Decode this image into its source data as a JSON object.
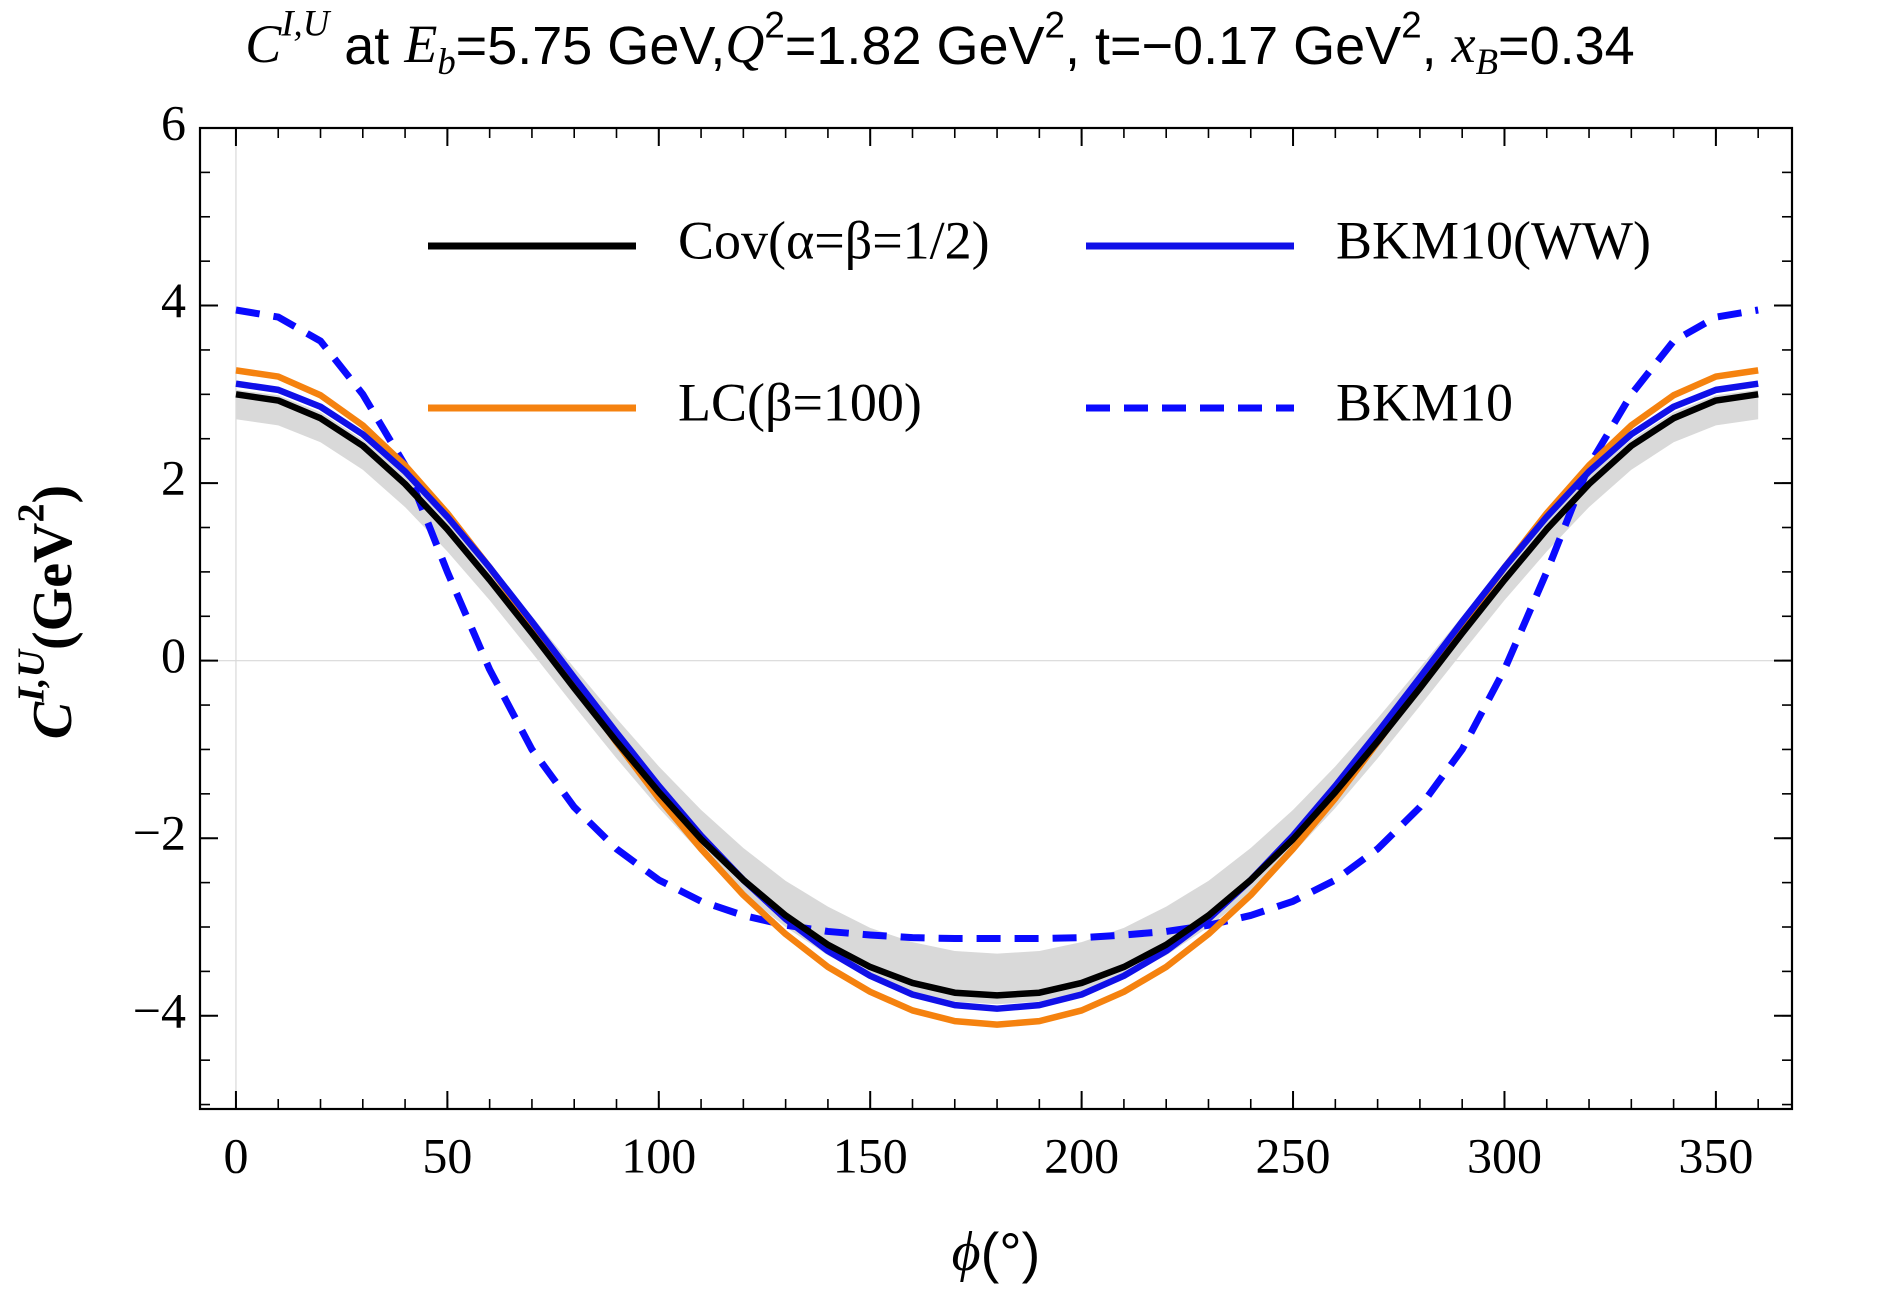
{
  "chart_data": {
    "type": "line",
    "title": [
      {
        "text": "C",
        "style": "italic"
      },
      {
        "text": "I,U",
        "style": "italic sup"
      },
      {
        "text": " at "
      },
      {
        "text": "E",
        "style": "italic"
      },
      {
        "text": "b",
        "style": "italic sub"
      },
      {
        "text": "=5.75 GeV,"
      },
      {
        "text": "Q",
        "style": "italic"
      },
      {
        "text": "2",
        "style": "sup"
      },
      {
        "text": "=1.82 GeV"
      },
      {
        "text": "2",
        "style": "sup"
      },
      {
        "text": ", t=−0.17 GeV"
      },
      {
        "text": "2",
        "style": "sup"
      },
      {
        "text": ", "
      },
      {
        "text": "x",
        "style": "italic"
      },
      {
        "text": "B",
        "style": "italic sub"
      },
      {
        "text": "=0.34"
      }
    ],
    "xlabel": [
      {
        "text": "ϕ",
        "style": "italic"
      },
      {
        "text": "(°)"
      }
    ],
    "ylabel": [
      {
        "text": "C",
        "style": "italic"
      },
      {
        "text": "I,U",
        "style": "italic sup"
      },
      {
        "text": "(GeV"
      },
      {
        "text": "2",
        "style": "sup"
      },
      {
        "text": ")"
      }
    ],
    "x": [
      0,
      10,
      20,
      30,
      40,
      50,
      60,
      70,
      80,
      90,
      100,
      110,
      120,
      130,
      140,
      150,
      160,
      170,
      180,
      190,
      200,
      210,
      220,
      230,
      240,
      250,
      260,
      270,
      280,
      290,
      300,
      310,
      320,
      330,
      340,
      350,
      360
    ],
    "band": {
      "color": "#d9d9d9",
      "lower": [
        2.72,
        2.65,
        2.46,
        2.15,
        1.73,
        1.23,
        0.68,
        0.09,
        -0.51,
        -1.1,
        -1.66,
        -2.17,
        -2.62,
        -3.0,
        -3.32,
        -3.56,
        -3.73,
        -3.84,
        -3.87,
        -3.84,
        -3.73,
        -3.56,
        -3.32,
        -3.0,
        -2.62,
        -2.17,
        -1.66,
        -1.1,
        -0.51,
        0.09,
        0.68,
        1.23,
        1.73,
        2.15,
        2.46,
        2.65,
        2.72
      ],
      "upper": [
        3.05,
        2.99,
        2.8,
        2.49,
        2.09,
        1.61,
        1.07,
        0.5,
        -0.08,
        -0.65,
        -1.19,
        -1.68,
        -2.11,
        -2.48,
        -2.77,
        -3.01,
        -3.17,
        -3.27,
        -3.3,
        -3.27,
        -3.17,
        -3.01,
        -2.77,
        -2.48,
        -2.11,
        -1.68,
        -1.19,
        -0.65,
        -0.08,
        0.5,
        1.07,
        1.61,
        2.09,
        2.49,
        2.8,
        2.99,
        3.05
      ]
    },
    "series": [
      {
        "name": "Cov(α=β=1/2)",
        "color": "#000000",
        "dash": false,
        "values": [
          3.0,
          2.93,
          2.73,
          2.42,
          1.99,
          1.48,
          0.91,
          0.31,
          -0.31,
          -0.91,
          -1.48,
          -2.01,
          -2.47,
          -2.87,
          -3.2,
          -3.45,
          -3.63,
          -3.74,
          -3.77,
          -3.74,
          -3.63,
          -3.45,
          -3.2,
          -2.87,
          -2.47,
          -2.01,
          -1.48,
          -0.91,
          -0.31,
          0.31,
          0.91,
          1.48,
          1.99,
          2.42,
          2.73,
          2.93,
          3.0
        ]
      },
      {
        "name": "BKM10(WW)",
        "color": "#1010e8",
        "dash": false,
        "values": [
          3.12,
          3.05,
          2.86,
          2.55,
          2.13,
          1.62,
          1.05,
          0.44,
          -0.19,
          -0.81,
          -1.41,
          -1.97,
          -2.47,
          -2.91,
          -3.27,
          -3.55,
          -3.76,
          -3.88,
          -3.92,
          -3.88,
          -3.76,
          -3.55,
          -3.27,
          -2.91,
          -2.47,
          -1.97,
          -1.41,
          -0.81,
          -0.19,
          0.44,
          1.05,
          1.62,
          2.13,
          2.55,
          2.86,
          3.05,
          3.12
        ]
      },
      {
        "name": "LC(β=100)",
        "color": "#f5820f",
        "dash": false,
        "values": [
          3.27,
          3.2,
          2.99,
          2.65,
          2.2,
          1.66,
          1.05,
          0.4,
          -0.27,
          -0.92,
          -1.55,
          -2.12,
          -2.64,
          -3.08,
          -3.45,
          -3.73,
          -3.94,
          -4.06,
          -4.1,
          -4.06,
          -3.94,
          -3.73,
          -3.45,
          -3.08,
          -2.64,
          -2.12,
          -1.55,
          -0.92,
          -0.27,
          0.4,
          1.05,
          1.66,
          2.2,
          2.65,
          2.99,
          3.2,
          3.27
        ]
      },
      {
        "name": "BKM10",
        "color": "#0a0aff",
        "dash": true,
        "values": [
          3.95,
          3.87,
          3.6,
          3.0,
          2.2,
          1.0,
          -0.1,
          -1.0,
          -1.65,
          -2.12,
          -2.47,
          -2.71,
          -2.87,
          -2.98,
          -3.05,
          -3.09,
          -3.12,
          -3.13,
          -3.13,
          -3.13,
          -3.12,
          -3.09,
          -3.05,
          -2.98,
          -2.87,
          -2.71,
          -2.47,
          -2.12,
          -1.65,
          -1.0,
          -0.1,
          1.0,
          2.2,
          3.0,
          3.6,
          3.87,
          3.95
        ]
      }
    ],
    "xlim": [
      -8.5,
      368
    ],
    "ylim": [
      -5.05,
      6
    ],
    "xticks": [
      0,
      50,
      100,
      150,
      200,
      250,
      300,
      350
    ],
    "yticks": [
      {
        "value": -4,
        "label": "−4"
      },
      {
        "value": -2,
        "label": "−2"
      },
      0,
      2,
      4,
      6
    ],
    "xminorticks": [
      0,
      10,
      20,
      30,
      40,
      50,
      60,
      70,
      80,
      90,
      100,
      110,
      120,
      130,
      140,
      150,
      160,
      170,
      180,
      190,
      200,
      210,
      220,
      230,
      240,
      250,
      260,
      270,
      280,
      290,
      300,
      310,
      320,
      330,
      340,
      350,
      360
    ],
    "yminorticks": [
      -5,
      -4.5,
      -4,
      -3.5,
      -3,
      -2.5,
      -2,
      -1.5,
      -1,
      -0.5,
      0,
      0.5,
      1,
      1.5,
      2,
      2.5,
      3,
      3.5,
      4,
      4.5,
      5,
      5.5,
      6
    ],
    "xgrid": [
      0
    ],
    "ygrid": [
      0
    ],
    "legend": "upper center"
  }
}
